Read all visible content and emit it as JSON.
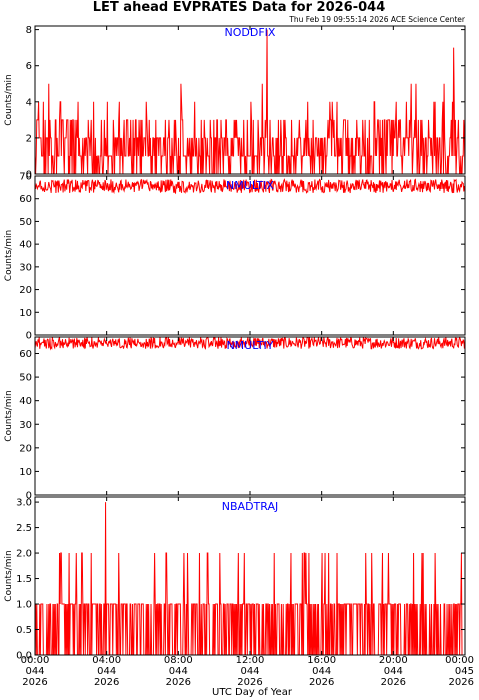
{
  "page": {
    "title": "LET ahead EVPRATES Data for 2026-044",
    "timestamp": "Thu Feb 19 09:55:14 2026 ACE Science Center",
    "xlabel": "UTC Day of Year"
  },
  "colors": {
    "series": "#ff0000",
    "panel_label": "#0000ff",
    "axis": "#000000"
  },
  "x_ticks": [
    {
      "time": "00:00",
      "doy": "044",
      "year": "2026"
    },
    {
      "time": "04:00",
      "doy": "044",
      "year": "2026"
    },
    {
      "time": "08:00",
      "doy": "044",
      "year": "2026"
    },
    {
      "time": "12:00",
      "doy": "044",
      "year": "2026"
    },
    {
      "time": "16:00",
      "doy": "044",
      "year": "2026"
    },
    {
      "time": "20:00",
      "doy": "044",
      "year": "2026"
    },
    {
      "time": "00:00",
      "doy": "045",
      "year": "2026"
    }
  ],
  "chart_data": [
    {
      "type": "line",
      "name": "NODDFIX",
      "ylabel": "Counts/min",
      "xlim_hours": [
        0,
        24
      ],
      "ylim": [
        0,
        8.2
      ],
      "yticks": [
        0,
        2,
        4,
        6,
        8
      ],
      "ytick_labels": [
        "0",
        "2",
        "4",
        "6",
        "8"
      ],
      "typical_range": [
        0,
        3
      ],
      "mean": 1.5,
      "occasional_peaks": 5,
      "spikes": [
        {
          "hour": 12.95,
          "value": 8
        },
        {
          "hour": 23.35,
          "value": 7
        }
      ]
    },
    {
      "type": "line",
      "name": "NMULTIX",
      "ylabel": "Counts/min",
      "xlim_hours": [
        0,
        24
      ],
      "ylim": [
        0,
        70
      ],
      "yticks": [
        0,
        10,
        20,
        30,
        40,
        50,
        60,
        70
      ],
      "ytick_labels": [
        "0",
        "10",
        "20",
        "30",
        "40",
        "50",
        "60",
        "70"
      ],
      "typical_range": [
        62,
        68
      ],
      "mean": 65.5,
      "spikes": []
    },
    {
      "type": "line",
      "name": "NMULTIY",
      "ylabel": "Counts/min",
      "xlim_hours": [
        0,
        24
      ],
      "ylim": [
        0,
        67
      ],
      "yticks": [
        0,
        10,
        20,
        30,
        40,
        50,
        60
      ],
      "ytick_labels": [
        "0",
        "10",
        "20",
        "30",
        "40",
        "50",
        "60"
      ],
      "typical_range": [
        62,
        67
      ],
      "mean": 64.5,
      "spikes": []
    },
    {
      "type": "line",
      "name": "NBADTRAJ",
      "ylabel": "Counts/min",
      "xlim_hours": [
        0,
        24
      ],
      "ylim": [
        0,
        3.1
      ],
      "yticks": [
        0,
        0.5,
        1,
        1.5,
        2,
        2.5,
        3
      ],
      "ytick_labels": [
        "0.0",
        "0.5",
        "1.0",
        "1.5",
        "2.0",
        "2.5",
        "3.0"
      ],
      "typical_range": [
        0,
        1
      ],
      "mean": 0.5,
      "occasional_peaks": 2,
      "spikes": [
        {
          "hour": 3.95,
          "value": 3
        }
      ]
    }
  ]
}
